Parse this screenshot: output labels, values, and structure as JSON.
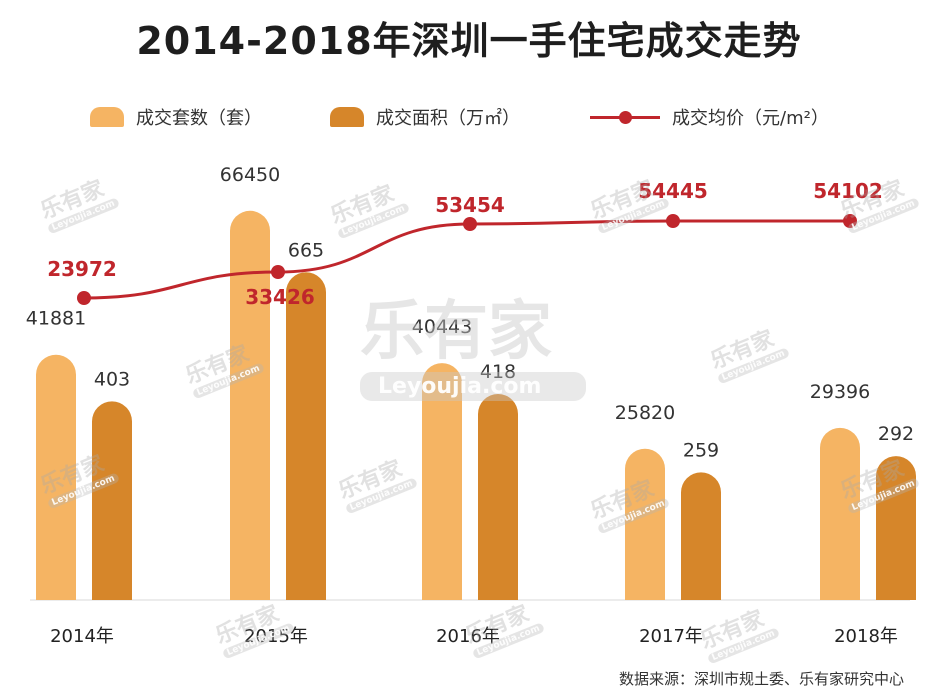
{
  "title": "2014-2018年深圳一手住宅成交走势",
  "legend": {
    "units": "成交套数（套）",
    "area": "成交面积（万㎡）",
    "price": "成交均价（元/m²）"
  },
  "source": "数据来源：深圳市规土委、乐有家研究中心",
  "watermark": {
    "brand": "乐有家",
    "site": "Leyoujia.com"
  },
  "colors": {
    "units": "#f5b463",
    "area": "#d6862a",
    "price": "#c0262c",
    "price_label": "#c0262c"
  },
  "chart_data": {
    "type": "bar",
    "categories": [
      "2014年",
      "2015年",
      "2016年",
      "2017年",
      "2018年"
    ],
    "series": [
      {
        "name": "成交套数（套）",
        "type": "bar",
        "values": [
          41881,
          66450,
          40443,
          25820,
          29396
        ]
      },
      {
        "name": "成交面积（万㎡）",
        "type": "bar",
        "values": [
          403,
          665,
          418,
          259,
          292
        ]
      },
      {
        "name": "成交均价（元/m²）",
        "type": "line",
        "values": [
          23972,
          33426,
          53454,
          54445,
          54102
        ]
      }
    ],
    "ylim_units": [
      0,
      70000
    ],
    "ylim_area": [
      0,
      700
    ],
    "ylim_price": [
      0,
      80000
    ],
    "grid": false,
    "legend_position": "top"
  }
}
